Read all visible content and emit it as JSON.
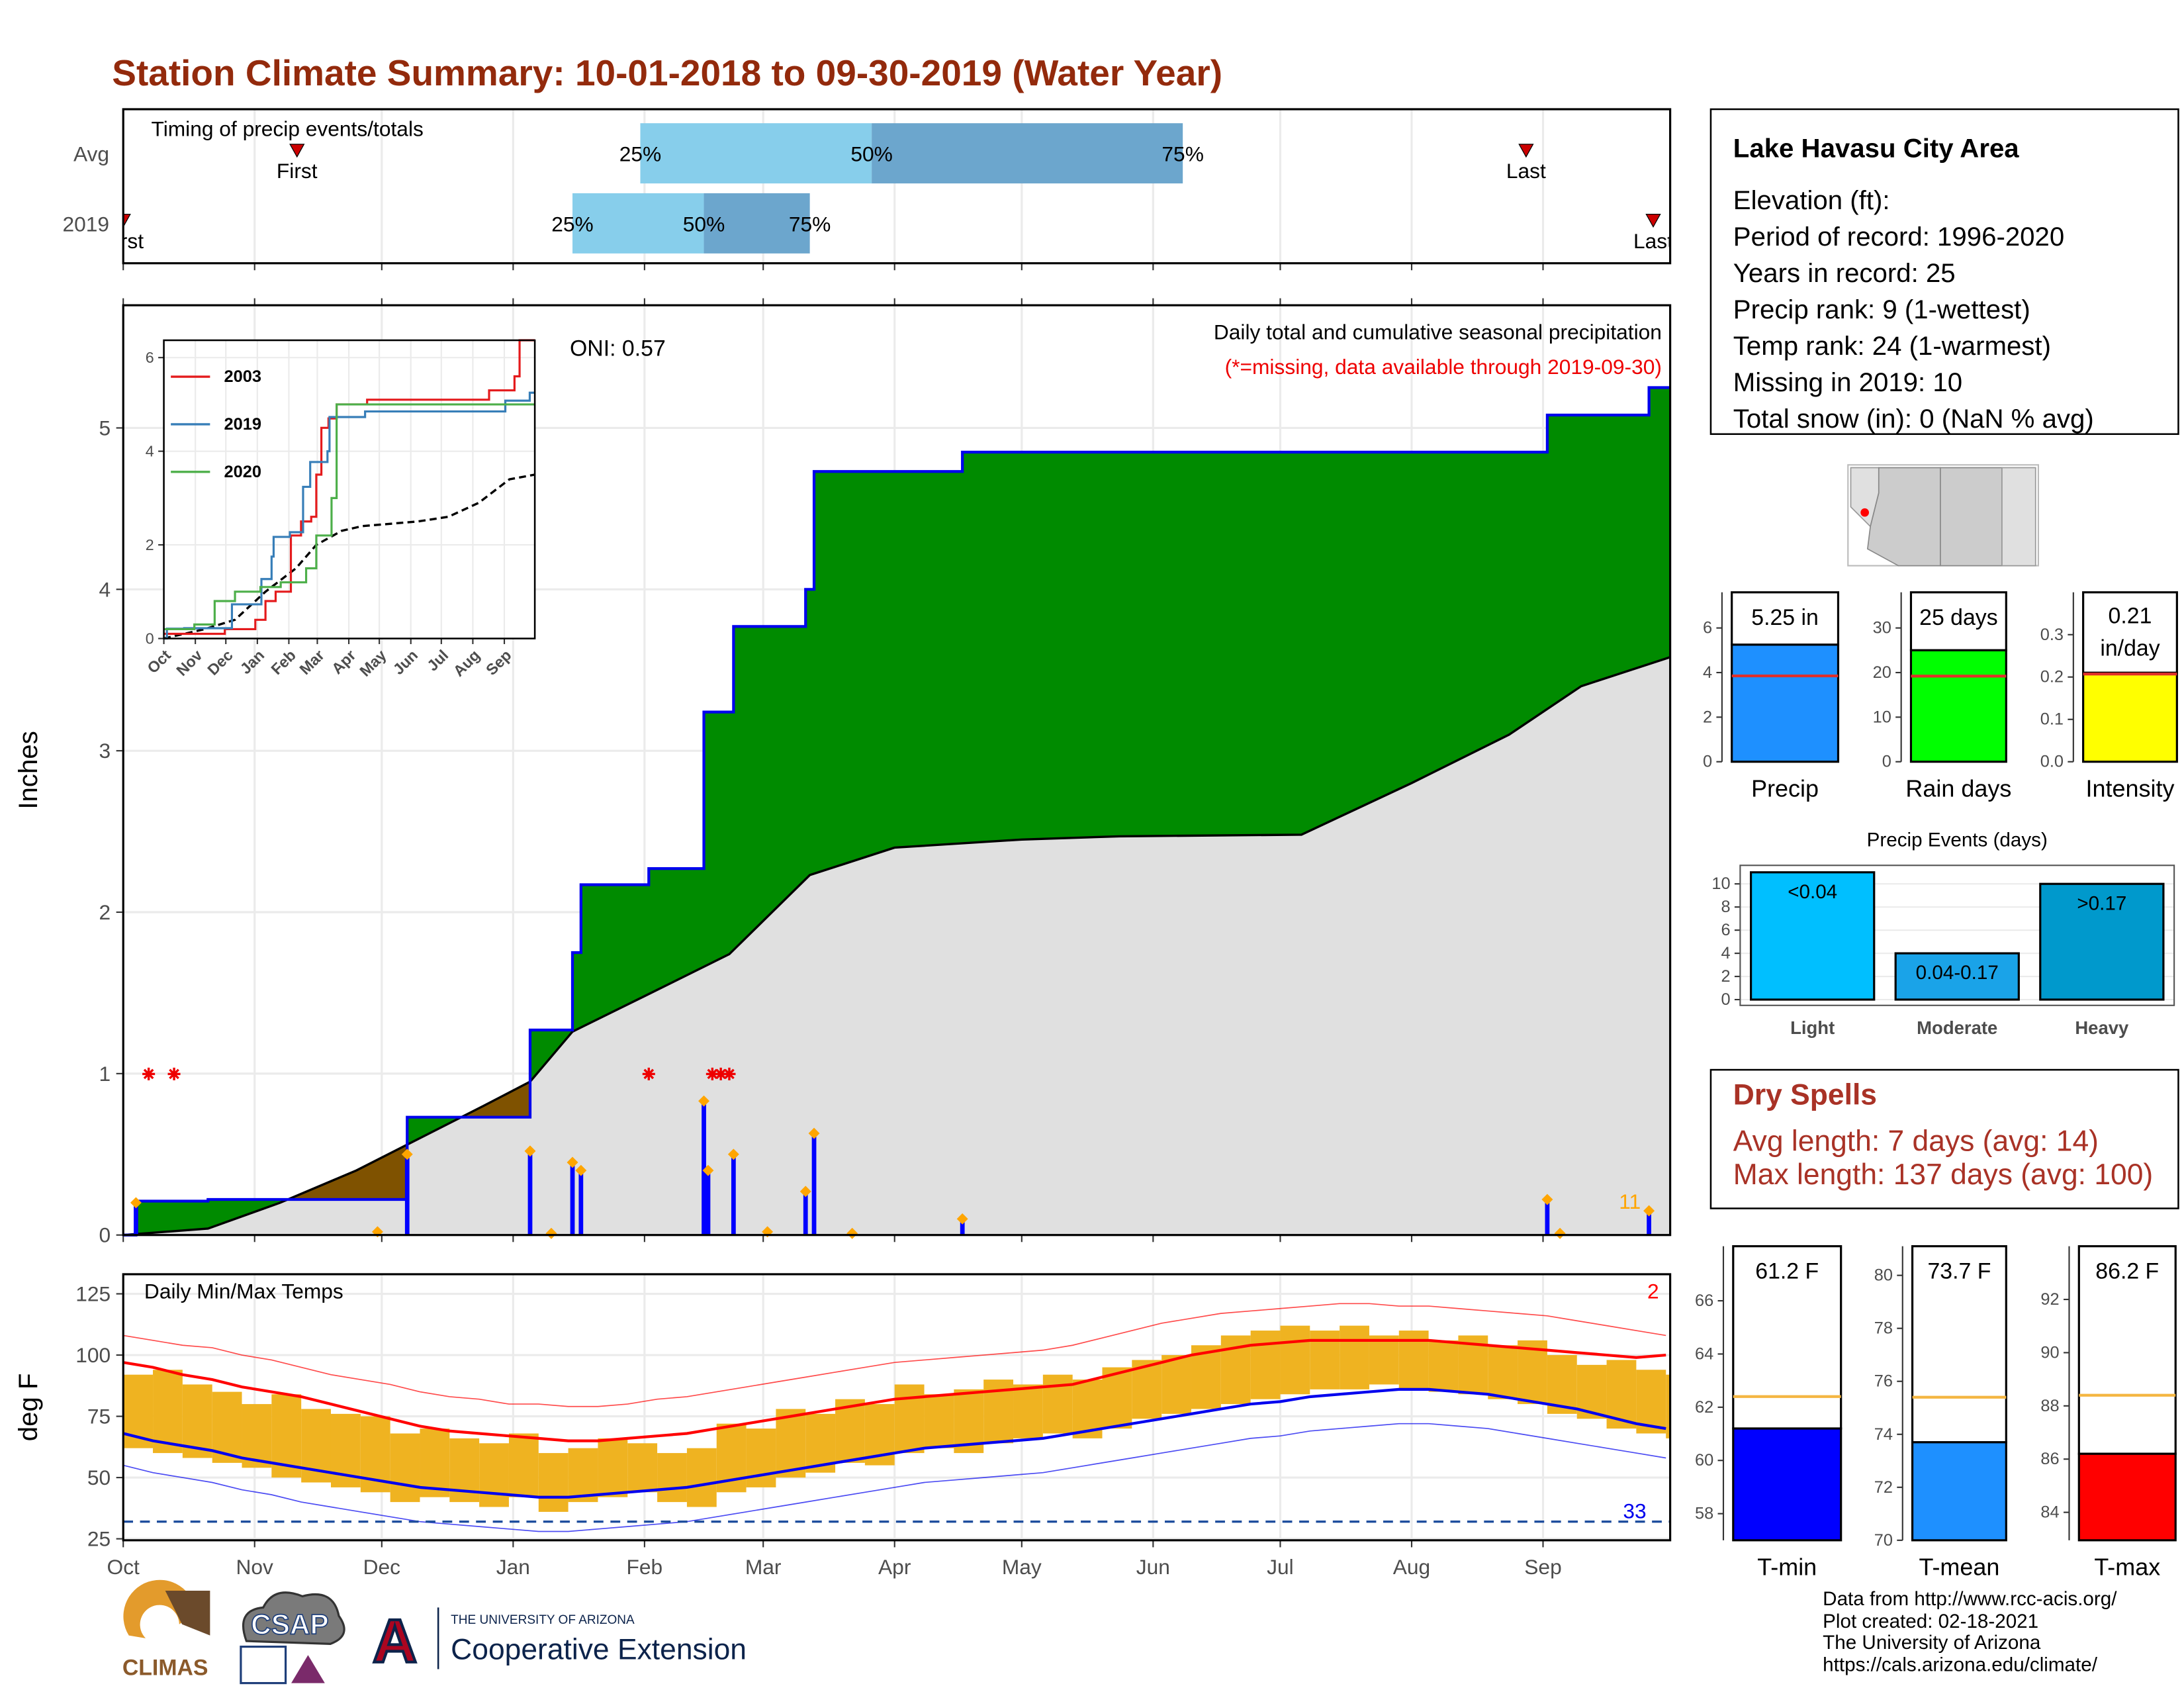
{
  "title": "Station Climate Summary: 10-01-2018 to 09-30-2019 (Water Year)",
  "info": {
    "title": "Lake Havasu City Area",
    "lines": [
      "Elevation (ft):",
      "Period of record: 1996-2020",
      "Years in record: 25",
      "Precip rank: 9 (1-wettest)",
      "Temp rank: 24 (1-warmest)",
      "Missing in 2019: 10",
      "Total snow (in): 0 (NaN % avg)"
    ]
  },
  "dry_spells": {
    "title": "Dry Spells",
    "lines": [
      "Avg length: 7 days (avg: 14)",
      "Max length: 137 days (avg: 100)"
    ]
  },
  "footer": [
    "Data from http://www.rcc-acis.org/",
    "Plot created: 02-18-2021",
    "The University of Arizona",
    "https://cals.arizona.edu/climate/"
  ],
  "logos": [
    "CLIMAS",
    "CSAP",
    "A",
    "THE UNIVERSITY OF ARIZONA",
    "Cooperative Extension"
  ],
  "chart_data": [
    {
      "type": "timing",
      "title": "Timing of precip events/totals",
      "xlim": [
        0,
        365
      ],
      "xticks": [
        0,
        31,
        61,
        92,
        123,
        151,
        182,
        212,
        243,
        273,
        304,
        335
      ],
      "categories": [
        "Avg",
        "2019"
      ],
      "first_label": "First",
      "last_label": "Last",
      "colors": [
        "#87ceeb",
        "#6ca6cd",
        "#cc0000"
      ],
      "series": [
        {
          "quartiles": [
            122,
            176.6,
            250
          ],
          "quartile_labels": [
            "25%",
            "50%",
            "75%"
          ],
          "first": 41,
          "last": 331
        },
        {
          "quartiles": [
            106,
            137,
            162
          ],
          "quartile_labels": [
            "25%",
            "50%",
            "75%"
          ],
          "first": 0,
          "last": 361
        }
      ]
    },
    {
      "type": "precip",
      "title": "Daily total and cumulative seasonal precipitation",
      "subtitle": "(*=missing, data available through 2019-09-30)",
      "annotation": "ONI: 0.57",
      "count_label": "11",
      "ylabel": "Inches",
      "xlim": [
        0,
        365
      ],
      "xticks": [
        0,
        31,
        61,
        92,
        123,
        151,
        182,
        212,
        243,
        273,
        304,
        335
      ],
      "ylim": [
        0,
        5.76
      ],
      "yticks": [
        0,
        1,
        2,
        3,
        4,
        5
      ],
      "grid": true,
      "colors": {
        "above": "#008b00",
        "below": "#7f5200",
        "average": "#e0e0e0",
        "line": "#0000ee",
        "daily": "#0000ff",
        "event": "#ffa500",
        "missing": "#ee0000"
      },
      "cumulative": {
        "x": [
          0,
          3,
          20,
          67,
          96,
          106,
          108,
          124,
          137,
          144,
          161,
          163,
          198,
          336,
          360,
          365
        ],
        "values": [
          0,
          0.21,
          0.22,
          0.73,
          1.27,
          1.75,
          2.17,
          2.27,
          3.24,
          3.77,
          4.0,
          4.73,
          4.85,
          5.08,
          5.25,
          5.25
        ]
      },
      "average": {
        "x": [
          0,
          20,
          37,
          55,
          70,
          85,
          96,
          106,
          123,
          143,
          162,
          182,
          212,
          235,
          278,
          304,
          327,
          344,
          365
        ],
        "values": [
          0,
          0.04,
          0.2,
          0.4,
          0.6,
          0.8,
          0.95,
          1.26,
          1.48,
          1.74,
          2.23,
          2.4,
          2.45,
          2.47,
          2.48,
          2.8,
          3.1,
          3.4,
          3.58
        ]
      },
      "daily": {
        "x": [
          3,
          60,
          67,
          96,
          101,
          106,
          108,
          137,
          138,
          144,
          152,
          161,
          163,
          172,
          198,
          336,
          339,
          360
        ],
        "values": [
          0.2,
          0.02,
          0.5,
          0.52,
          0.01,
          0.45,
          0.4,
          0.83,
          0.4,
          0.5,
          0.02,
          0.27,
          0.63,
          0.01,
          0.1,
          0.22,
          0.01,
          0.15
        ]
      },
      "missing_x": [
        6,
        12,
        124,
        139,
        141,
        143
      ]
    },
    {
      "type": "line",
      "xlim": [
        0,
        365
      ],
      "xticks": [
        {
          "value": 0,
          "label": "Oct"
        },
        {
          "value": 31,
          "label": "Nov"
        },
        {
          "value": 61,
          "label": "Dec"
        },
        {
          "value": 92,
          "label": "Jan"
        },
        {
          "value": 123,
          "label": "Feb"
        },
        {
          "value": 151,
          "label": "Mar"
        },
        {
          "value": 182,
          "label": "Apr"
        },
        {
          "value": 212,
          "label": "May"
        },
        {
          "value": 243,
          "label": "Jun"
        },
        {
          "value": 273,
          "label": "Jul"
        },
        {
          "value": 304,
          "label": "Aug"
        },
        {
          "value": 335,
          "label": "Sep"
        }
      ],
      "ylim": [
        0,
        6.37
      ],
      "yticks": [
        0,
        2,
        4,
        6
      ],
      "series": [
        {
          "name": "2003",
          "color": "#e41a1c",
          "x": [
            0,
            40,
            60,
            90,
            100,
            110,
            125,
            135,
            145,
            150,
            155,
            162,
            170,
            200,
            300,
            320,
            345,
            350,
            365
          ],
          "values": [
            0.1,
            0.1,
            0.2,
            0.4,
            0.8,
            1.0,
            2.2,
            2.5,
            2.6,
            3.5,
            4.5,
            4.7,
            5.0,
            5.1,
            5.1,
            5.3,
            5.6,
            6.37,
            6.37
          ]
        },
        {
          "name": "2019",
          "color": "#377eb8",
          "x": [
            0,
            3,
            20,
            67,
            96,
            106,
            108,
            124,
            137,
            144,
            161,
            163,
            198,
            336,
            360,
            365
          ],
          "values": [
            0,
            0.21,
            0.22,
            0.73,
            1.27,
            1.75,
            2.17,
            2.27,
            3.24,
            3.77,
            4.0,
            4.73,
            4.85,
            5.08,
            5.25,
            5.25
          ]
        },
        {
          "name": "2020",
          "color": "#4daf4a",
          "x": [
            0,
            30,
            50,
            70,
            95,
            115,
            140,
            150,
            165,
            170,
            365
          ],
          "values": [
            0.2,
            0.3,
            0.8,
            1.0,
            1.1,
            1.2,
            1.5,
            2.2,
            3.0,
            5.0,
            5.0
          ]
        }
      ],
      "average": {
        "color": "#000000",
        "x": [
          0,
          40,
          70,
          100,
          130,
          150,
          175,
          195,
          250,
          280,
          310,
          340,
          365
        ],
        "values": [
          0,
          0.2,
          0.4,
          1.0,
          1.5,
          2.0,
          2.3,
          2.4,
          2.5,
          2.6,
          2.9,
          3.4,
          3.5
        ]
      }
    },
    {
      "type": "temps",
      "title": "Daily Min/Max Temps",
      "ylabel": "deg F",
      "high_count": "2",
      "freeze_count": "33",
      "freeze": 32,
      "xlim": [
        0,
        365
      ],
      "xticks": [
        {
          "value": 0,
          "label": "Oct"
        },
        {
          "value": 31,
          "label": "Nov"
        },
        {
          "value": 61,
          "label": "Dec"
        },
        {
          "value": 92,
          "label": "Jan"
        },
        {
          "value": 123,
          "label": "Feb"
        },
        {
          "value": 151,
          "label": "Mar"
        },
        {
          "value": 182,
          "label": "Apr"
        },
        {
          "value": 212,
          "label": "May"
        },
        {
          "value": 243,
          "label": "Jun"
        },
        {
          "value": 273,
          "label": "Jul"
        },
        {
          "value": 304,
          "label": "Aug"
        },
        {
          "value": 335,
          "label": "Sep"
        }
      ],
      "ylim": [
        24.4,
        133
      ],
      "yticks": [
        25,
        50,
        75,
        100,
        125
      ],
      "colors": {
        "observed": "#efb321",
        "max": "#ff0000",
        "min": "#0000ee",
        "freeze": "#1f4e9e"
      },
      "x": [
        0,
        7,
        14,
        21,
        28,
        35,
        42,
        49,
        56,
        63,
        70,
        77,
        84,
        91,
        98,
        105,
        112,
        119,
        126,
        133,
        140,
        147,
        154,
        161,
        168,
        175,
        182,
        189,
        196,
        203,
        210,
        217,
        224,
        231,
        238,
        245,
        252,
        259,
        266,
        273,
        280,
        287,
        294,
        301,
        308,
        315,
        322,
        329,
        336,
        343,
        350,
        357,
        364
      ],
      "observed_max": [
        92,
        94,
        88,
        85,
        80,
        84,
        78,
        76,
        75,
        68,
        70,
        66,
        64,
        68,
        60,
        62,
        66,
        64,
        60,
        62,
        72,
        70,
        78,
        76,
        82,
        80,
        88,
        84,
        86,
        90,
        88,
        92,
        90,
        95,
        98,
        100,
        104,
        108,
        110,
        112,
        110,
        112,
        108,
        110,
        106,
        108,
        104,
        106,
        100,
        96,
        98,
        94,
        92
      ],
      "observed_min": [
        62,
        60,
        58,
        56,
        54,
        50,
        48,
        46,
        44,
        40,
        42,
        40,
        38,
        42,
        36,
        40,
        42,
        44,
        40,
        38,
        44,
        46,
        50,
        52,
        56,
        55,
        60,
        62,
        60,
        64,
        66,
        68,
        66,
        70,
        74,
        76,
        78,
        80,
        82,
        84,
        86,
        86,
        88,
        86,
        85,
        84,
        82,
        80,
        76,
        74,
        70,
        68,
        66
      ],
      "average_max": [
        97,
        95,
        92,
        90,
        87,
        85,
        83,
        80,
        77,
        74,
        71,
        69,
        68,
        67,
        66,
        65,
        65,
        66,
        67,
        68,
        70,
        72,
        74,
        76,
        78,
        80,
        82,
        83,
        84,
        85,
        86,
        87,
        88,
        91,
        94,
        97,
        100,
        102,
        104,
        105,
        106,
        106,
        106,
        106,
        106,
        105,
        104,
        103,
        102,
        101,
        100,
        99,
        100
      ],
      "average_min": [
        68,
        65,
        63,
        61,
        58,
        56,
        54,
        52,
        50,
        48,
        46,
        45,
        44,
        43,
        42,
        42,
        43,
        44,
        45,
        46,
        48,
        50,
        52,
        54,
        56,
        58,
        60,
        62,
        63,
        64,
        65,
        66,
        68,
        70,
        72,
        74,
        76,
        78,
        80,
        81,
        83,
        84,
        85,
        86,
        86,
        85,
        84,
        82,
        80,
        78,
        75,
        72,
        70
      ],
      "record_max": [
        108,
        106,
        104,
        103,
        100,
        98,
        95,
        92,
        90,
        88,
        85,
        83,
        82,
        80,
        80,
        79,
        79,
        80,
        82,
        83,
        85,
        87,
        89,
        91,
        93,
        95,
        97,
        98,
        99,
        100,
        101,
        102,
        104,
        107,
        110,
        113,
        115,
        117,
        118,
        119,
        120,
        121,
        121,
        120,
        120,
        119,
        118,
        117,
        116,
        114,
        112,
        110,
        108
      ],
      "record_min": [
        55,
        52,
        50,
        48,
        45,
        43,
        40,
        38,
        36,
        34,
        32,
        31,
        30,
        29,
        28,
        28,
        29,
        30,
        31,
        32,
        34,
        36,
        38,
        40,
        42,
        44,
        46,
        48,
        49,
        50,
        51,
        52,
        54,
        56,
        58,
        60,
        62,
        64,
        66,
        67,
        69,
        70,
        71,
        72,
        72,
        71,
        70,
        68,
        66,
        64,
        62,
        60,
        58
      ]
    },
    {
      "type": "bar",
      "categories": [
        "Precip"
      ],
      "values": [
        5.25
      ],
      "value_labels": [
        "5.25 in"
      ],
      "average": [
        3.85
      ],
      "color": "#1e90ff",
      "average_color": "#e0302a",
      "ylim": [
        0,
        7.6
      ],
      "yticks": [
        0,
        2,
        4,
        6
      ]
    },
    {
      "type": "bar",
      "categories": [
        "Rain days"
      ],
      "values": [
        25
      ],
      "value_labels": [
        "25 days"
      ],
      "average": [
        19.2
      ],
      "color": "#00ff00",
      "average_color": "#e0302a",
      "ylim": [
        0,
        38
      ],
      "yticks": [
        0,
        10,
        20,
        30
      ]
    },
    {
      "type": "bar",
      "categories": [
        "Intensity"
      ],
      "values": [
        0.21
      ],
      "value_labels": [
        "0.21"
      ],
      "unit": "in/day",
      "average": [
        0.207
      ],
      "color": "#ffff00",
      "average_color": "#e0302a",
      "ylim": [
        0,
        0.4
      ],
      "yticks": [
        {
          "value": 0,
          "label": "0.0"
        },
        0.1,
        0.2,
        0.3
      ]
    },
    {
      "type": "events",
      "title": "Precip Events (days)",
      "categories": [
        "Light",
        "Moderate",
        "Heavy"
      ],
      "values": [
        11,
        4,
        10
      ],
      "thresholds": [
        "<0.04",
        "0.04-0.17",
        ">0.17"
      ],
      "colors": [
        "#00bfff",
        "#1aa3e8",
        "#0099cc"
      ],
      "ylim": [
        -0.5,
        11.6
      ],
      "yticks": [
        0,
        2,
        4,
        6,
        8,
        10
      ],
      "grid": true
    },
    {
      "type": "bar",
      "categories": [
        "T-min"
      ],
      "values": [
        61.2
      ],
      "value_labels": [
        "61.2 F"
      ],
      "average": [
        62.4
      ],
      "color": "#0000ff",
      "average_color": "#f4b642",
      "ylim": [
        57,
        68.05
      ],
      "yticks": [
        58,
        60,
        62,
        64,
        66
      ]
    },
    {
      "type": "bar",
      "categories": [
        "T-mean"
      ],
      "values": [
        73.7
      ],
      "value_labels": [
        "73.7 F"
      ],
      "average": [
        75.4
      ],
      "color": "#1e90ff",
      "average_color": "#f4b642",
      "ylim": [
        70,
        81.1
      ],
      "yticks": [
        70,
        72,
        74,
        76,
        78,
        80
      ]
    },
    {
      "type": "bar",
      "categories": [
        "T-max"
      ],
      "values": [
        86.2
      ],
      "value_labels": [
        "86.2 F"
      ],
      "average": [
        88.4
      ],
      "color": "#ff0000",
      "average_color": "#f4b642",
      "ylim": [
        82.95,
        94
      ],
      "yticks": [
        84,
        86,
        88,
        90,
        92
      ]
    }
  ]
}
